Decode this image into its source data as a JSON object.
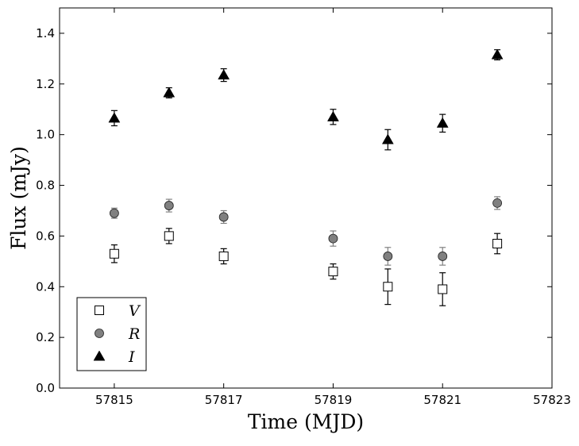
{
  "chart_data": {
    "type": "scatter",
    "title": "",
    "xlabel": "Time (MJD)",
    "ylabel": "Flux (mJy)",
    "xlim": [
      57814,
      57823
    ],
    "ylim": [
      0.0,
      1.5
    ],
    "xticks": [
      57815,
      57817,
      57819,
      57821,
      57823
    ],
    "xtick_labels": [
      "57815",
      "57817",
      "57819",
      "57821",
      "57823"
    ],
    "yticks": [
      0.0,
      0.2,
      0.4,
      0.6,
      0.8,
      1.0,
      1.2,
      1.4
    ],
    "ytick_labels": [
      "0.0",
      "0.2",
      "0.4",
      "0.6",
      "0.8",
      "1.0",
      "1.2",
      "1.4"
    ],
    "grid": false,
    "legend_position": "lower-left",
    "series": [
      {
        "name": "V",
        "marker": "square-open",
        "color": "#000000",
        "x": [
          57815,
          57816,
          57817,
          57819,
          57820,
          57821,
          57822
        ],
        "y": [
          0.53,
          0.6,
          0.52,
          0.46,
          0.4,
          0.39,
          0.57
        ],
        "err": [
          0.035,
          0.03,
          0.03,
          0.03,
          0.07,
          0.065,
          0.04
        ]
      },
      {
        "name": "R",
        "marker": "circle",
        "color": "#808080",
        "x": [
          57815,
          57816,
          57817,
          57819,
          57820,
          57821,
          57822
        ],
        "y": [
          0.69,
          0.72,
          0.675,
          0.59,
          0.52,
          0.52,
          0.73
        ],
        "err": [
          0.02,
          0.025,
          0.025,
          0.03,
          0.035,
          0.035,
          0.025
        ]
      },
      {
        "name": "I",
        "marker": "triangle",
        "color": "#000000",
        "x": [
          57815,
          57816,
          57817,
          57819,
          57820,
          57821,
          57822
        ],
        "y": [
          1.065,
          1.165,
          1.235,
          1.07,
          0.98,
          1.045,
          1.315
        ],
        "err": [
          0.03,
          0.02,
          0.025,
          0.03,
          0.04,
          0.035,
          0.02
        ]
      }
    ]
  }
}
